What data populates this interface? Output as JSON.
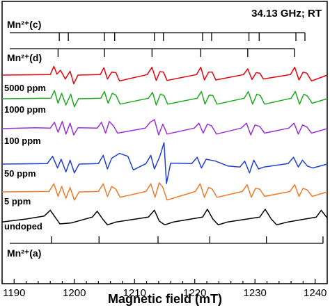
{
  "chart_data": {
    "type": "line",
    "xlabel": "Magnetic field (mT)",
    "xlim": [
      1188,
      1242
    ],
    "xticks": [
      1190,
      1200,
      1210,
      1220,
      1230,
      1240
    ],
    "ylabel": "",
    "grid": false,
    "legend": "none",
    "annotations": {
      "condition": "34.13 GHz; RT",
      "stick_c_label": "Mn²⁺(c)",
      "stick_d_label": "Mn²⁺(d)",
      "stick_a_label": "Mn²⁺(a)"
    },
    "stick_sets": [
      {
        "name": "Mn²⁺(c)",
        "positions": [
          1197.5,
          1199.0,
          1205.0,
          1206.7,
          1213.3,
          1214.8,
          1221.3,
          1222.8,
          1229.0,
          1230.7,
          1236.8,
          1238.3
        ]
      },
      {
        "name": "Mn²⁺(d)",
        "positions": [
          1197.3,
          1205.0,
          1212.9,
          1221.0,
          1228.8,
          1236.6
        ]
      },
      {
        "name": "Mn²⁺(a)",
        "positions": [
          1196.2,
          1204.1,
          1213.9,
          1222.5,
          1231.9,
          1241.3
        ]
      }
    ],
    "series": [
      {
        "name": "5000 ppm",
        "color": "#e8000b",
        "x": [
          1188,
          1196.0,
          1196.6,
          1197.1,
          1197.7,
          1198.5,
          1199.3,
          1199.9,
          1200.6,
          1204.3,
          1204.9,
          1205.5,
          1206.2,
          1206.9,
          1207.5,
          1212.1,
          1212.9,
          1213.6,
          1214.2,
          1214.8,
          1215.4,
          1220.3,
          1221.0,
          1221.6,
          1222.3,
          1222.9,
          1223.5,
          1228.1,
          1228.8,
          1229.5,
          1230.2,
          1230.8,
          1231.4,
          1235.9,
          1236.6,
          1237.3,
          1238.0,
          1238.6,
          1239.4,
          1242
        ],
        "y": [
          0,
          0.05,
          0.9,
          0.1,
          0.5,
          -0.4,
          0.4,
          -0.9,
          0,
          0.05,
          0.75,
          -0.4,
          0.3,
          0.25,
          -0.6,
          0.05,
          0.8,
          -0.55,
          0.35,
          0.3,
          -0.55,
          0.05,
          0.8,
          -0.5,
          0.3,
          0.3,
          -0.5,
          0.05,
          0.65,
          -0.45,
          0.25,
          0.2,
          -0.4,
          0.05,
          0.8,
          -0.5,
          0.3,
          0.2,
          -0.6,
          0
        ]
      },
      {
        "name": "1000 ppm",
        "color": "#1daa1d",
        "x": [
          1188,
          1196.1,
          1196.7,
          1197.3,
          1197.9,
          1198.6,
          1199.4,
          1200.0,
          1200.7,
          1204.4,
          1205.0,
          1205.6,
          1206.3,
          1206.9,
          1207.6,
          1212.3,
          1213.0,
          1213.6,
          1214.3,
          1214.9,
          1215.5,
          1220.4,
          1221.1,
          1221.7,
          1222.4,
          1223.0,
          1223.7,
          1228.2,
          1228.9,
          1229.6,
          1230.3,
          1230.9,
          1231.6,
          1236.0,
          1236.7,
          1237.4,
          1238.1,
          1238.7,
          1239.5,
          1242
        ],
        "y": [
          0,
          0.05,
          0.9,
          -0.5,
          0.6,
          -0.7,
          0.5,
          -0.9,
          0,
          0.05,
          0.8,
          -0.5,
          0.6,
          0.4,
          -0.6,
          0.05,
          0.7,
          -0.7,
          0.5,
          0.35,
          -0.6,
          0.05,
          0.8,
          -0.6,
          0.4,
          0.35,
          -0.6,
          0.05,
          0.8,
          -0.6,
          0.5,
          0.35,
          -0.6,
          0.05,
          0.8,
          -0.6,
          0.5,
          0.3,
          -0.5,
          0
        ]
      },
      {
        "name": "100 ppm",
        "color": "#9b30d9",
        "x": [
          1188,
          1193.5,
          1196.0,
          1196.7,
          1197.3,
          1198.0,
          1198.6,
          1199.3,
          1199.9,
          1200.6,
          1203.8,
          1204.5,
          1205.2,
          1205.8,
          1206.5,
          1207.2,
          1211.8,
          1212.6,
          1213.3,
          1214.0,
          1214.7,
          1215.4,
          1219.9,
          1220.7,
          1221.4,
          1222.1,
          1222.8,
          1223.6,
          1227.7,
          1228.6,
          1229.3,
          1230.0,
          1230.8,
          1231.6,
          1235.6,
          1236.5,
          1237.2,
          1237.9,
          1238.6,
          1239.4,
          1242
        ],
        "y": [
          0,
          0.1,
          0.05,
          0.7,
          -0.4,
          0.8,
          -0.6,
          0.6,
          -0.7,
          0.1,
          0.05,
          0.7,
          -0.5,
          0.8,
          0.3,
          -0.5,
          0.05,
          0.7,
          1.0,
          -0.7,
          0.5,
          -0.6,
          0.05,
          0.6,
          -0.5,
          0.5,
          0.3,
          -0.6,
          0.05,
          0.6,
          -0.7,
          0.4,
          0.25,
          -0.5,
          0.05,
          0.6,
          -0.6,
          0.4,
          0.2,
          -0.5,
          0
        ]
      },
      {
        "name": "50 ppm",
        "color": "#1f3fd1",
        "x": [
          1188,
          1195.5,
          1196.4,
          1197.2,
          1197.8,
          1198.6,
          1199.3,
          1200.0,
          1200.8,
          1204.0,
          1204.8,
          1205.5,
          1206.2,
          1207.5,
          1208.9,
          1209.8,
          1211.9,
          1212.7,
          1213.3,
          1214.2,
          1214.9,
          1215.3,
          1216.0,
          1219.5,
          1220.4,
          1221.1,
          1221.9,
          1223.5,
          1225.5,
          1227.5,
          1228.3,
          1229.1,
          1229.8,
          1230.6,
          1231.5,
          1235.5,
          1236.4,
          1237.2,
          1237.9,
          1238.7,
          1239.6,
          1242
        ],
        "y": [
          0,
          0.05,
          0.8,
          -0.4,
          0.5,
          -0.8,
          0.4,
          -0.9,
          0,
          0.05,
          0.9,
          -0.5,
          0.6,
          1.1,
          0.8,
          -0.6,
          0.05,
          0.9,
          -0.5,
          0.8,
          2.2,
          -2.0,
          0.1,
          0.05,
          0.7,
          -0.4,
          0.5,
          0.3,
          -0.2,
          -0.3,
          0.3,
          -0.9,
          0.4,
          -0.5,
          -0.3,
          0.05,
          0.7,
          -0.3,
          0.4,
          -0.2,
          -0.4,
          0
        ]
      },
      {
        "name": "5 ppm",
        "color": "#f07a2a",
        "x": [
          1188,
          1195.8,
          1196.6,
          1197.3,
          1197.9,
          1198.6,
          1199.3,
          1200.0,
          1200.8,
          1204.0,
          1204.8,
          1205.5,
          1206.2,
          1206.9,
          1207.6,
          1211.9,
          1212.7,
          1213.4,
          1214.1,
          1214.7,
          1215.4,
          1220.1,
          1220.9,
          1221.6,
          1222.3,
          1222.9,
          1223.7,
          1227.9,
          1228.7,
          1229.4,
          1230.1,
          1230.8,
          1231.6,
          1235.8,
          1236.6,
          1237.3,
          1238.0,
          1238.7,
          1239.5,
          1242
        ],
        "y": [
          0,
          0.05,
          0.9,
          -0.5,
          0.6,
          -0.7,
          0.5,
          -0.9,
          0,
          0.05,
          0.9,
          -0.5,
          0.6,
          0.3,
          -0.6,
          0.05,
          0.9,
          -0.6,
          1.0,
          0.5,
          -0.9,
          0.05,
          0.9,
          -0.6,
          0.5,
          0.3,
          -0.6,
          0.05,
          0.8,
          -0.6,
          0.4,
          0.3,
          -0.5,
          0.05,
          0.8,
          -0.5,
          0.4,
          0.2,
          -0.5,
          0
        ]
      },
      {
        "name": "undoped",
        "color": "#000000",
        "x": [
          1188,
          1192.0,
          1195.0,
          1196.0,
          1196.8,
          1197.6,
          1199.5,
          1203.0,
          1203.8,
          1204.7,
          1205.5,
          1207.0,
          1212.3,
          1213.3,
          1214.1,
          1215.0,
          1216.5,
          1221.3,
          1222.1,
          1223.0,
          1223.9,
          1225.5,
          1230.8,
          1231.7,
          1232.7,
          1233.6,
          1235.5,
          1240.2,
          1241.0,
          1242
        ],
        "y": [
          -0.3,
          0.0,
          0.3,
          0.9,
          0.2,
          -0.5,
          -0.4,
          0.2,
          0.8,
          0.0,
          -0.6,
          -0.3,
          0.2,
          0.9,
          -0.2,
          -0.6,
          -0.3,
          0.2,
          1.0,
          0.0,
          -0.6,
          -0.3,
          0.2,
          1.0,
          0.0,
          -0.6,
          -0.3,
          0.2,
          0.9,
          0.1
        ]
      }
    ]
  }
}
